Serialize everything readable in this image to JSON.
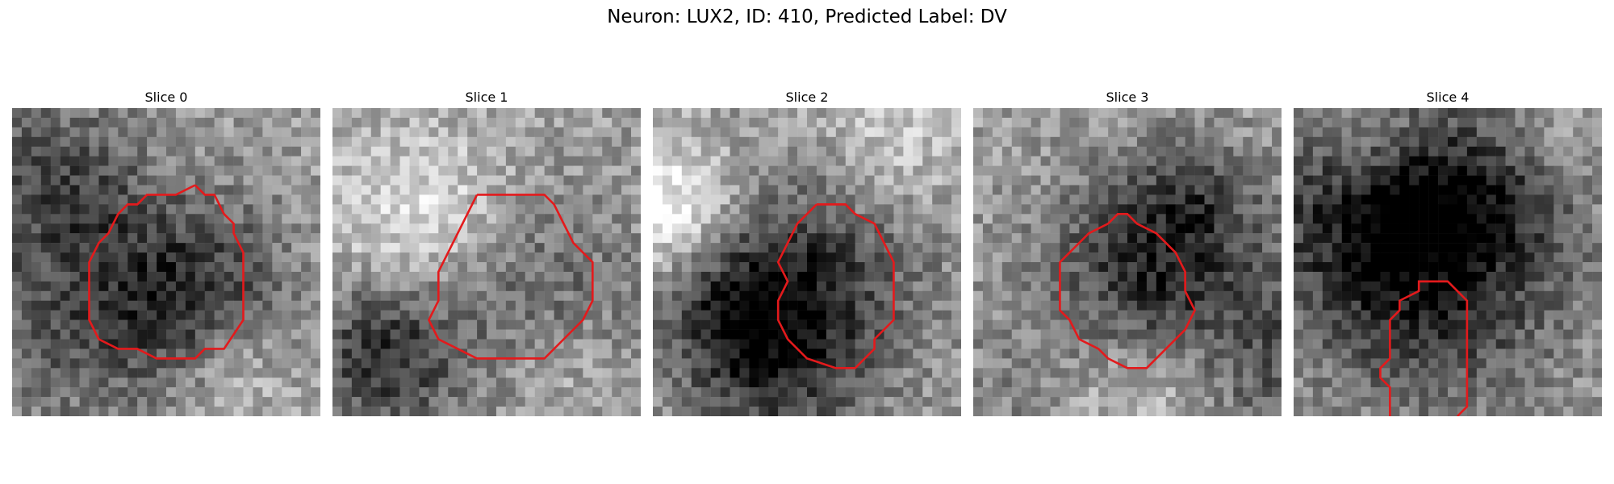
{
  "figure": {
    "title": "Neuron: LUX2, ID: 410, Predicted Label: DV"
  },
  "panels": [
    {
      "title": "Slice 0",
      "dark_center": [
        0.58,
        0.6
      ],
      "dark_spread": 0.22,
      "seed": 11
    },
    {
      "title": "Slice 1",
      "dark_center": [
        0.62,
        0.62
      ],
      "dark_spread": 0.24,
      "seed": 23
    },
    {
      "title": "Slice 2",
      "dark_center": [
        0.52,
        0.55
      ],
      "dark_spread": 0.26,
      "seed": 37
    },
    {
      "title": "Slice 3",
      "dark_center": [
        0.55,
        0.5
      ],
      "dark_spread": 0.22,
      "seed": 41
    },
    {
      "title": "Slice 4",
      "dark_center": [
        0.45,
        0.35
      ],
      "dark_spread": 0.35,
      "seed": 53
    }
  ],
  "contour_color": "#e31a1c"
}
